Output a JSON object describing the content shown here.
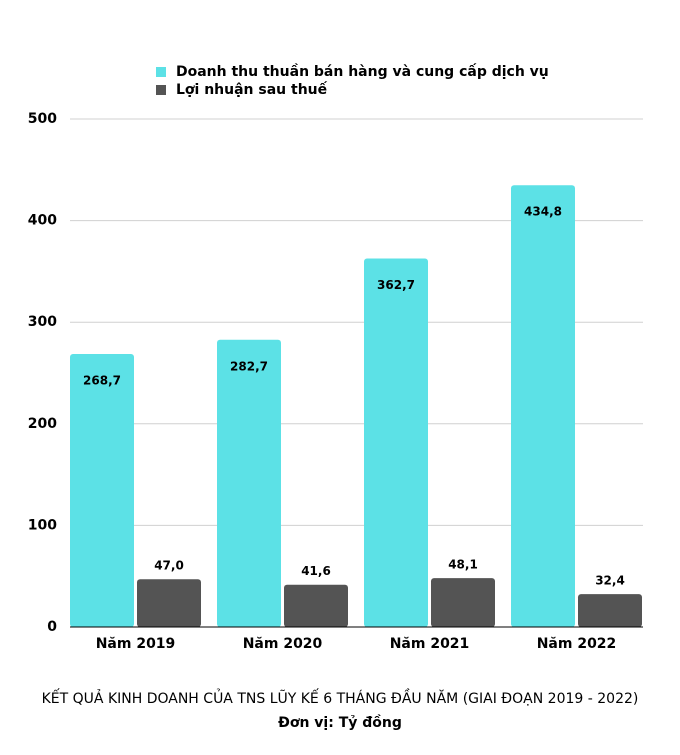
{
  "chart_data": {
    "type": "bar",
    "title": "KẾT QUẢ KINH DOANH CỦA TNS LŨY KẾ 6 THÁNG ĐẦU NĂM (GIAI ĐOẠN 2019 - 2022)",
    "subtitle": "Đơn vị: Tỷ đồng",
    "categories": [
      "Năm 2019",
      "Năm 2020",
      "Năm 2021",
      "Năm 2022"
    ],
    "series": [
      {
        "name": "Doanh thu thuần bán hàng và cung cấp dịch vụ",
        "color": "#5ce1e6",
        "values": [
          268.7,
          282.7,
          362.7,
          434.8
        ],
        "value_labels": [
          "268,7",
          "282,7",
          "362,7",
          "434,8"
        ]
      },
      {
        "name": "Lợi nhuận sau thuế",
        "color": "#545454",
        "values": [
          47.0,
          41.6,
          48.1,
          32.4
        ],
        "value_labels": [
          "47,0",
          "41,6",
          "48,1",
          "32,4"
        ]
      }
    ],
    "ylim": [
      0,
      500
    ],
    "yticks": [
      0,
      100,
      200,
      300,
      400,
      500
    ],
    "grid": true,
    "legend": "top"
  }
}
